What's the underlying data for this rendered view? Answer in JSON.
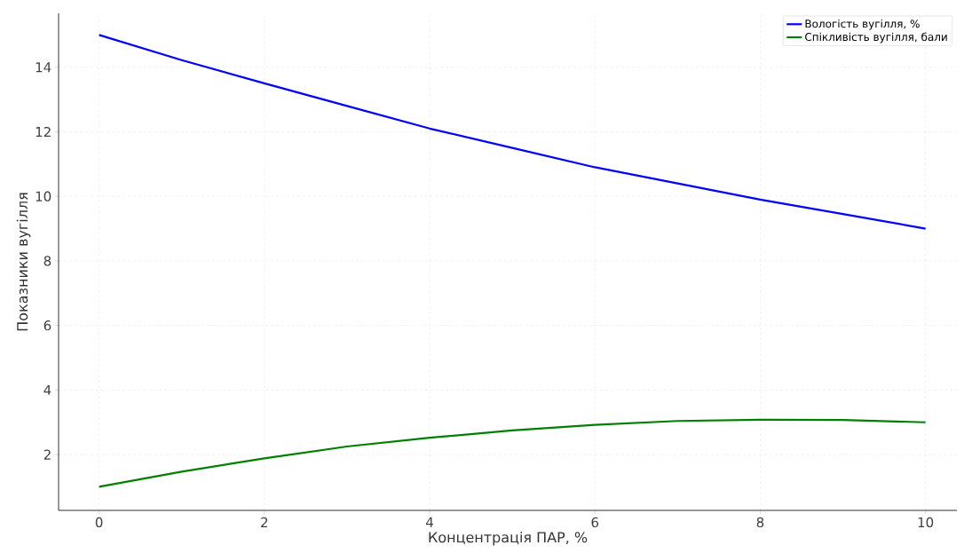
{
  "chart_data": {
    "type": "line",
    "xlabel": "Концентрація ПАР, %",
    "ylabel": "Показники вугілля",
    "x": [
      0,
      1,
      2,
      3,
      4,
      5,
      6,
      7,
      8,
      9,
      10
    ],
    "series": [
      {
        "name": "Вологість вугілля, %",
        "color": "#0000ff",
        "values": [
          15.0,
          14.22,
          13.5,
          12.8,
          12.1,
          11.5,
          10.9,
          10.4,
          9.9,
          9.45,
          9.0
        ]
      },
      {
        "name": "Спікливість вугілля, бали",
        "color": "#008000",
        "values": [
          1.0,
          1.47,
          1.88,
          2.25,
          2.52,
          2.75,
          2.92,
          3.04,
          3.08,
          3.07,
          3.0
        ]
      }
    ],
    "xlim": [
      -0.49,
      10.38
    ],
    "ylim": [
      0.27,
      15.67
    ],
    "xticks": [
      0,
      2,
      4,
      6,
      8,
      10
    ],
    "yticks": [
      2,
      4,
      6,
      8,
      10,
      12,
      14
    ],
    "grid": true,
    "legend": "top right",
    "marker": "none",
    "line_style": "solid"
  }
}
